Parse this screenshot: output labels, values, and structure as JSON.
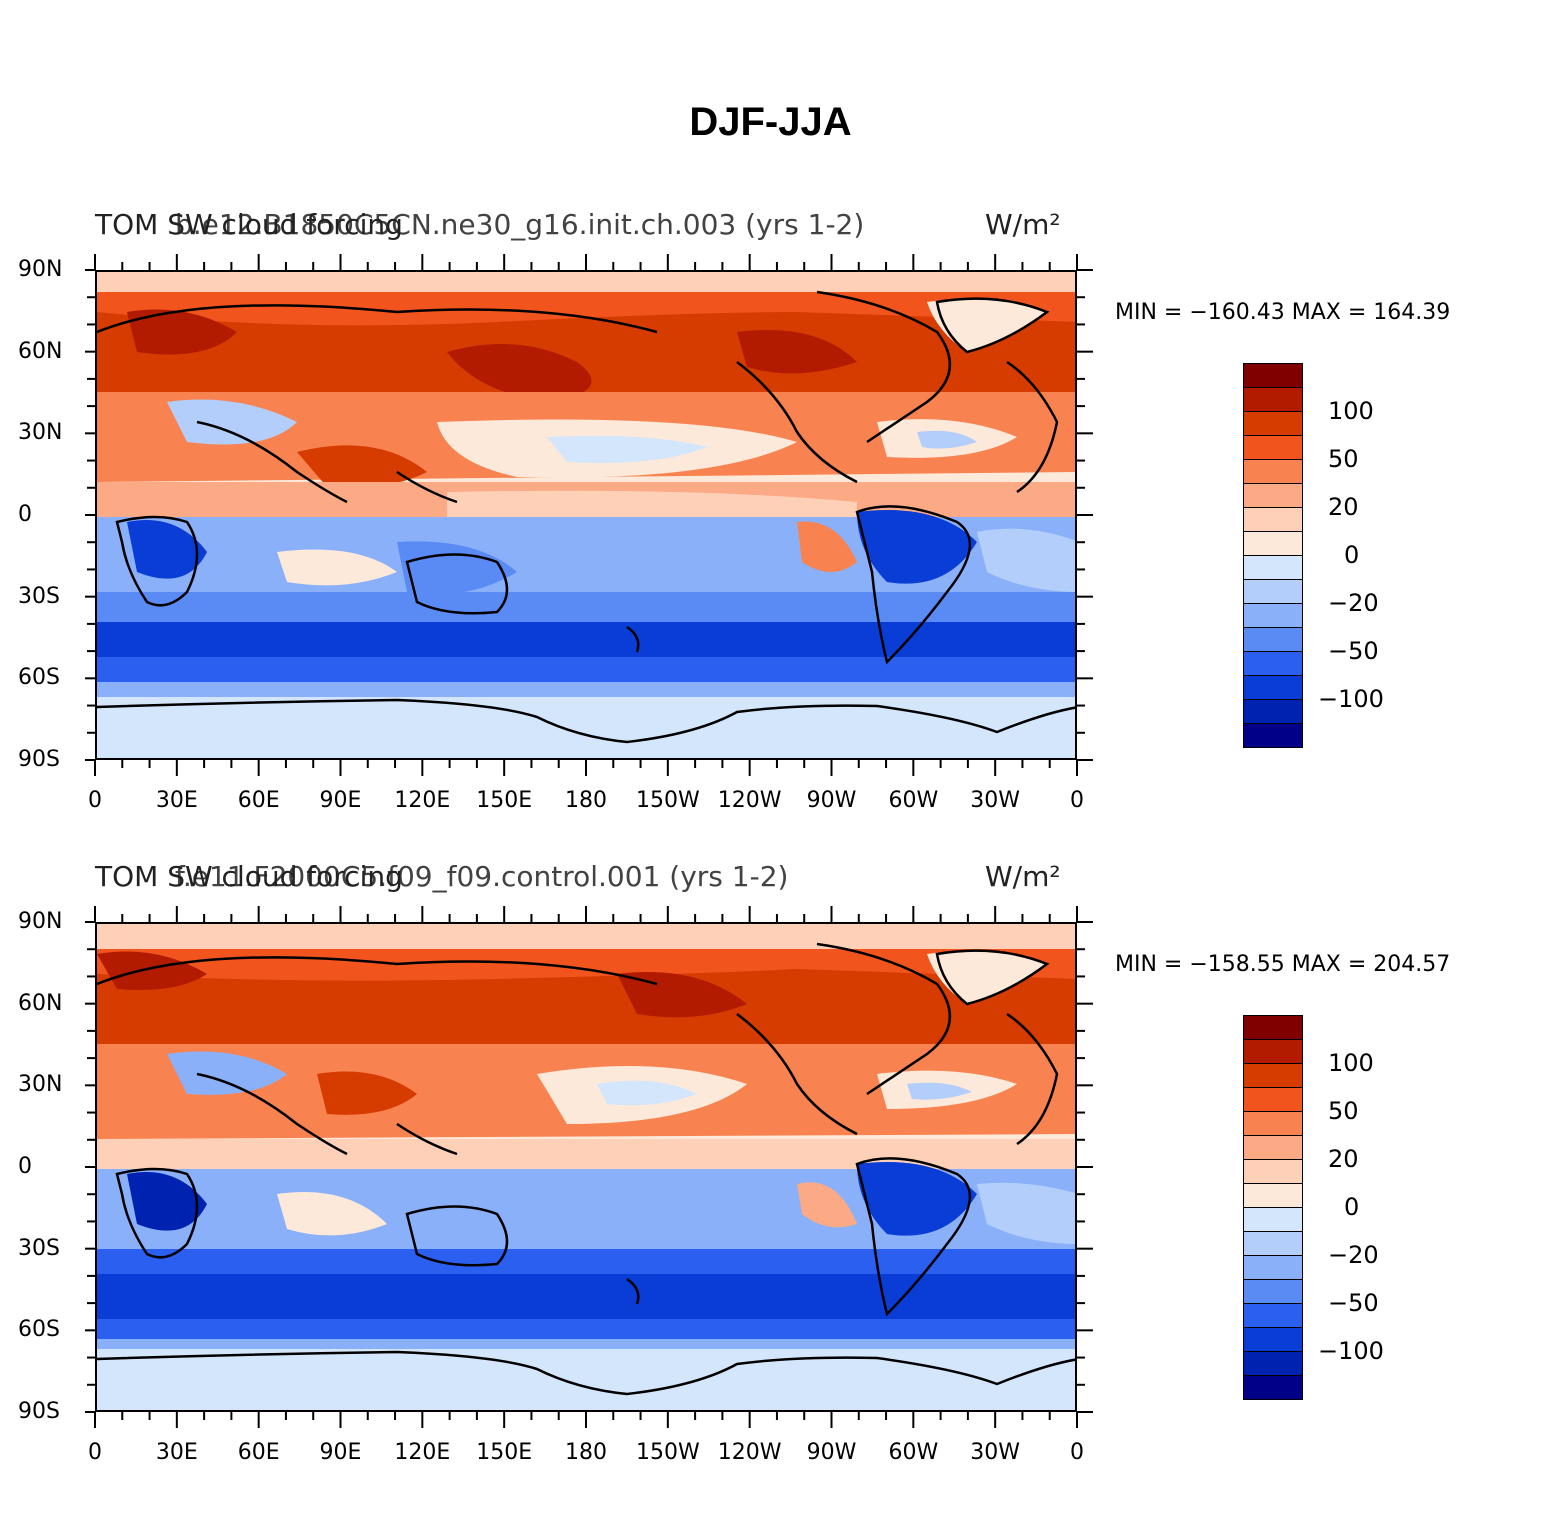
{
  "title": "DJF-JJA",
  "panels": [
    {
      "left_title": "TOM SW cloud forcing",
      "case_title": "b.e12.B1850C5CN.ne30_g16.init.ch.003 (yrs 1-2)",
      "units": "W/m²",
      "min_max": "MIN = −160.43  MAX = 164.39"
    },
    {
      "left_title": "TOM SW cloud forcing",
      "case_title": "f.e11.F2000C5.f09_f09.control.001 (yrs 1-2)",
      "units": "W/m²",
      "min_max": "MIN = −158.55  MAX = 204.57"
    }
  ],
  "lat_ticks": [
    "90N",
    "60N",
    "30N",
    "0",
    "30S",
    "60S",
    "90S"
  ],
  "lon_ticks": [
    "0",
    "30E",
    "60E",
    "90E",
    "120E",
    "150E",
    "180",
    "150W",
    "120W",
    "90W",
    "60W",
    "30W",
    "0"
  ],
  "colorbar": {
    "colors": [
      "#800000",
      "#b21b00",
      "#d63b00",
      "#f2541e",
      "#f88350",
      "#fca985",
      "#fed0b8",
      "#fde9d9",
      "#d3e6fb",
      "#b3cefa",
      "#8ab0fa",
      "#5a8bf5",
      "#2a5ff0",
      "#0a3dd6",
      "#0022b0",
      "#000088"
    ],
    "labels": [
      "100",
      "50",
      "20",
      "0",
      "−20",
      "−50",
      "−100"
    ]
  },
  "chart_data": [
    {
      "type": "heatmap",
      "title": "b.e12.B1850C5CN.ne30_g16.init.ch.003 (yrs 1-2)",
      "variable": "TOM SW cloud forcing",
      "units": "W/m²",
      "season": "DJF-JJA",
      "min": -160.43,
      "max": 164.39,
      "contour_levels": [
        -150,
        -125,
        -100,
        -75,
        -50,
        -35,
        -20,
        -10,
        0,
        10,
        20,
        35,
        50,
        75,
        100,
        125,
        150
      ],
      "xlim": [
        0,
        360
      ],
      "ylim": [
        -90,
        90
      ]
    },
    {
      "type": "heatmap",
      "title": "f.e11.F2000C5.f09_f09.control.001 (yrs 1-2)",
      "variable": "TOM SW cloud forcing",
      "units": "W/m²",
      "season": "DJF-JJA",
      "min": -158.55,
      "max": 204.57,
      "contour_levels": [
        -150,
        -125,
        -100,
        -75,
        -50,
        -35,
        -20,
        -10,
        0,
        10,
        20,
        35,
        50,
        75,
        100,
        125,
        150
      ],
      "xlim": [
        0,
        360
      ],
      "ylim": [
        -90,
        90
      ]
    }
  ]
}
